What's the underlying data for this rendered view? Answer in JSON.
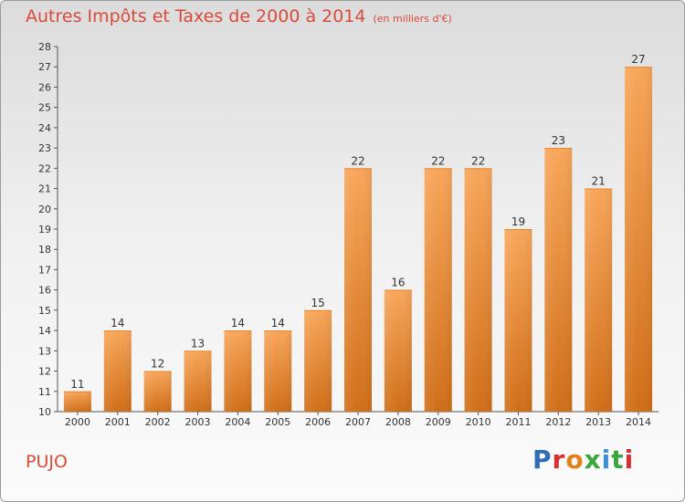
{
  "header": {
    "title": "Autres Impôts et Taxes de 2000 à 2014",
    "subtitle": "(en milliers d'€)"
  },
  "footer": {
    "city": "PUJO",
    "logo_text": "Proxiti"
  },
  "colors": {
    "bar_light": "#f8a65a",
    "bar_dark": "#d06e18",
    "title": "#d84a3a"
  },
  "chart_data": {
    "type": "bar",
    "title": "Autres Impôts et Taxes de 2000 à 2014",
    "subtitle": "(en milliers d'€)",
    "xlabel": "",
    "ylabel": "",
    "categories": [
      "2000",
      "2001",
      "2002",
      "2003",
      "2004",
      "2005",
      "2006",
      "2007",
      "2008",
      "2009",
      "2010",
      "2011",
      "2012",
      "2013",
      "2014"
    ],
    "values": [
      11,
      14,
      12,
      13,
      14,
      14,
      15,
      22,
      16,
      22,
      22,
      19,
      23,
      21,
      27
    ],
    "ylim": [
      10,
      28
    ],
    "yticks": [
      10,
      11,
      12,
      13,
      14,
      15,
      16,
      17,
      18,
      19,
      20,
      21,
      22,
      23,
      24,
      25,
      26,
      27,
      28
    ],
    "grid": false,
    "data_labels": true
  }
}
